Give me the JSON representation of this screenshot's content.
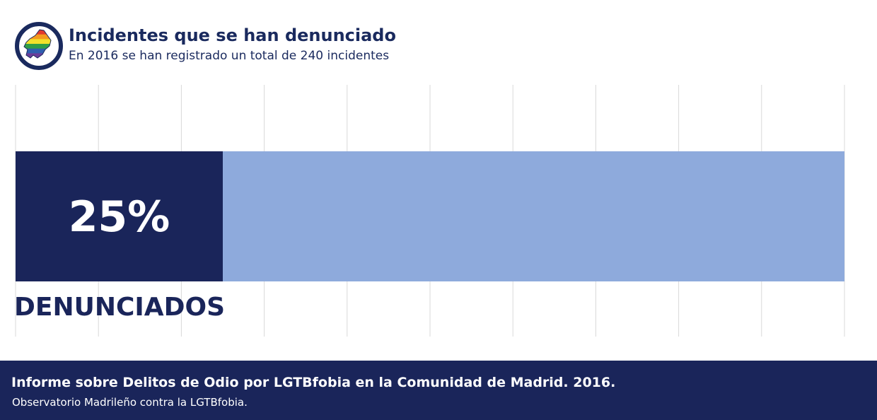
{
  "header": {
    "title": "Incidentes que se han denunciado",
    "subtitle": "En 2016 se han registrado un total de 240 incidentes"
  },
  "colors": {
    "dark": "#1a255a",
    "light": "#8eaadc",
    "grid": "#d9d9d9",
    "logo_ring": "#1a2a5e",
    "rainbow": [
      "#e23a2e",
      "#f39a1f",
      "#f2e12b",
      "#2f9d48",
      "#2f5fb0",
      "#6a3d9a"
    ]
  },
  "chart_data": {
    "type": "bar",
    "orientation": "horizontal",
    "stacked": true,
    "categories": [
      "DENUNCIADOS"
    ],
    "series": [
      {
        "values": [
          25
        ],
        "color": "#1a255a",
        "label": "25%"
      },
      {
        "values": [
          75
        ],
        "color": "#8eaadc"
      }
    ],
    "xlim": [
      0,
      100
    ],
    "grid": true
  },
  "footer": {
    "title": "Informe sobre Delitos de Odio por LGTBfobia en la Comunidad de Madrid. 2016.",
    "subtitle": "Observatorio Madrileño contra la LGTBfobia."
  }
}
